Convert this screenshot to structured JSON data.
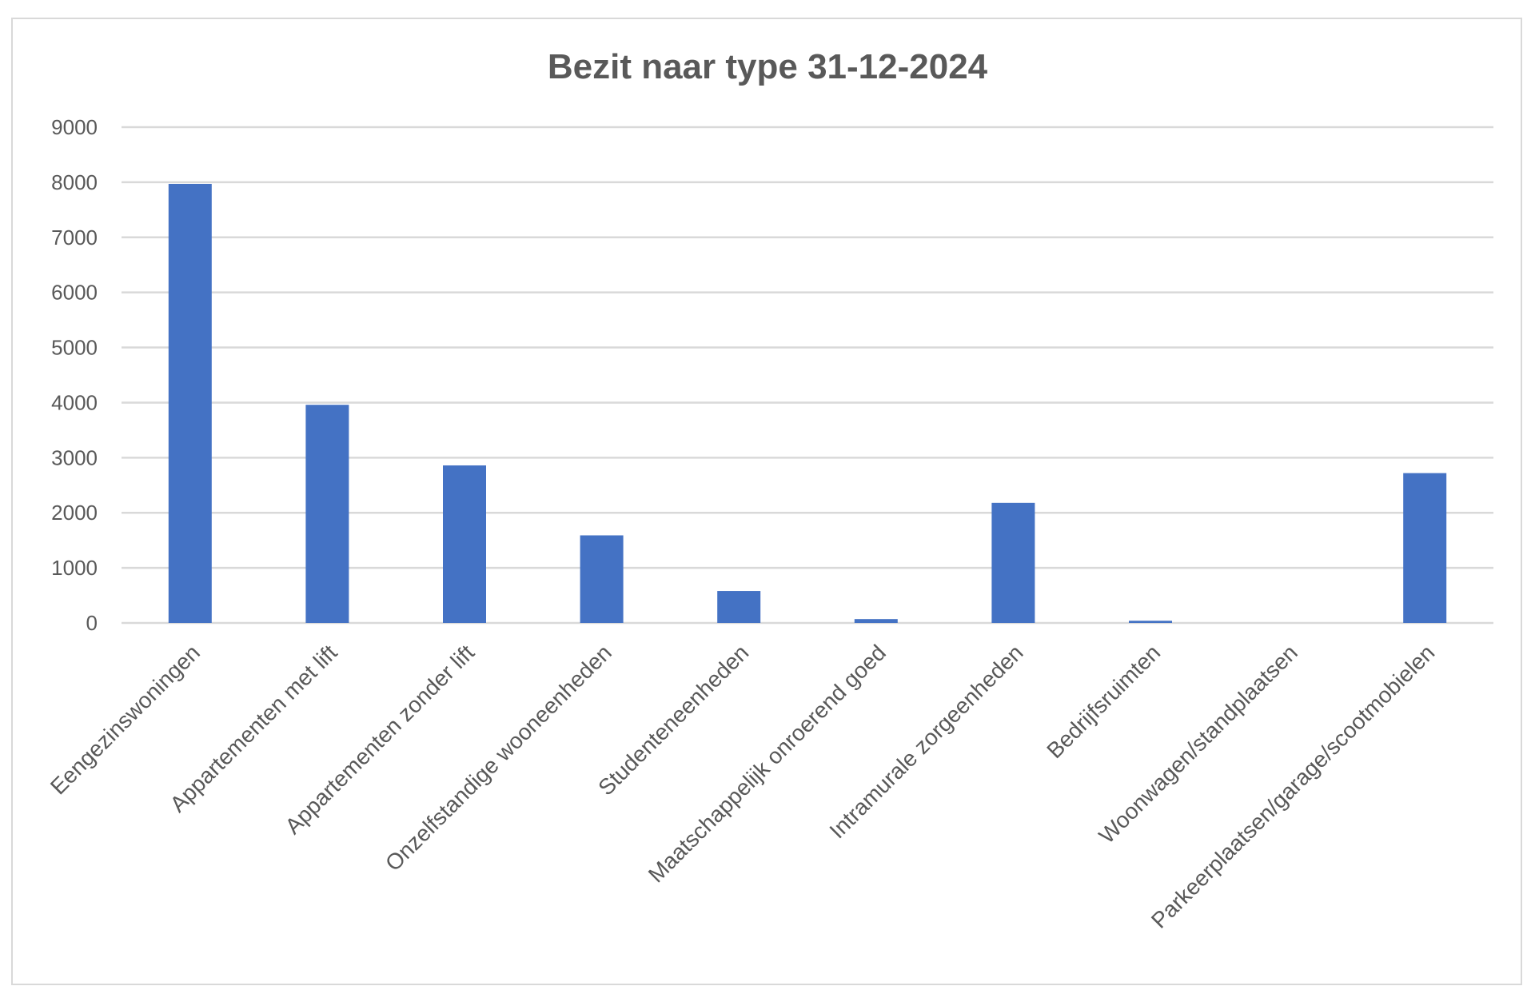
{
  "chart_data": {
    "type": "bar",
    "title": "Bezit naar type 31-12-2024",
    "categories": [
      "Eengezinswoningen",
      "Appartementen met lift",
      "Appartementen zonder lift",
      "Onzelfstandige wooneenheden",
      "Studenteneenheden",
      "Maatschappelijk onroerend goed",
      "Intramurale zorgeenheden",
      "Bedrijfsruimten",
      "Woonwagen/standplaatsen",
      "Parkeerplaatsen/garage/scootmobielen"
    ],
    "values": [
      7970,
      3960,
      2860,
      1590,
      580,
      70,
      2180,
      40,
      0,
      2720
    ],
    "ylim": [
      0,
      9000
    ],
    "yticks": [
      "0",
      "1000",
      "2000",
      "3000",
      "4000",
      "5000",
      "6000",
      "7000",
      "8000",
      "9000"
    ],
    "xlabel": "",
    "ylabel": "",
    "grid": true,
    "legend": "none",
    "bar_color": "#4472c4"
  }
}
